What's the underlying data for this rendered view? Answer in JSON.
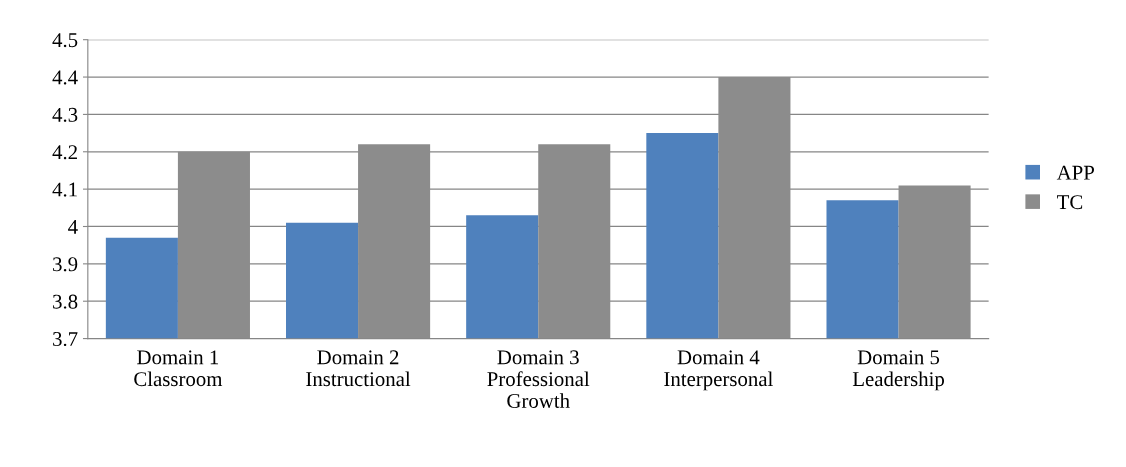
{
  "chart_data": {
    "type": "bar",
    "categories": [
      "Domain 1\nClassroom",
      "Domain 2\nInstructional",
      "Domain 3\nProfessional\nGrowth",
      "Domain 4\nInterpersonal",
      "Domain 5\nLeadership"
    ],
    "series": [
      {
        "name": "APP",
        "color": "#4f81bd",
        "values": [
          3.97,
          4.01,
          4.03,
          4.25,
          4.07
        ]
      },
      {
        "name": "TC",
        "color": "#8c8c8c",
        "values": [
          4.2,
          4.22,
          4.22,
          4.4,
          4.11
        ]
      }
    ],
    "ylim": [
      3.7,
      4.5
    ],
    "yticks": [
      3.7,
      3.8,
      3.9,
      4,
      4.1,
      4.2,
      4.3,
      4.4,
      4.5
    ],
    "grid": "y",
    "legend": "right"
  }
}
